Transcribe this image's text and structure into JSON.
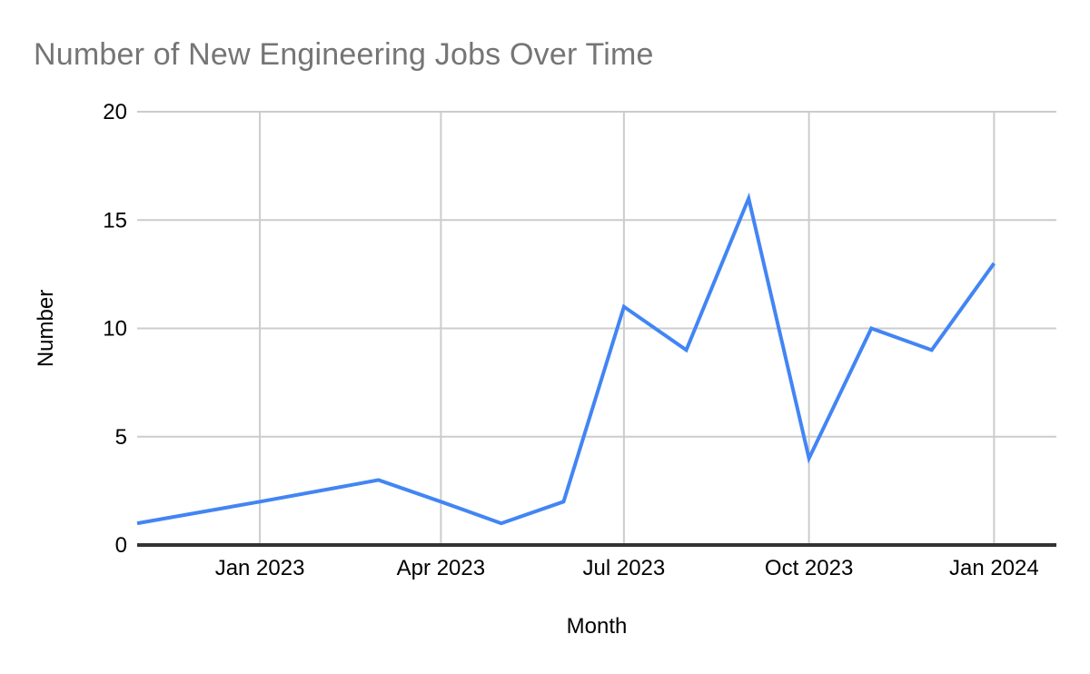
{
  "page": {
    "title": "Number of New Engineering Jobs Over Time"
  },
  "colors": {
    "series_line": "#4285f4",
    "gridline": "#cccccc",
    "baseline": "#333333",
    "title_text": "#757575",
    "axis_label_text": "#000000",
    "background": "#ffffff"
  },
  "chart_data": {
    "type": "line",
    "title": "Number of New Engineering Jobs Over Time",
    "xlabel": "Month",
    "ylabel": "Number",
    "ylim": [
      0,
      20
    ],
    "y_ticks": [
      0,
      5,
      10,
      15,
      20
    ],
    "grid": true,
    "legend": "none",
    "x_axis": {
      "start_month": "Nov 2022",
      "end_month": "Feb 2024",
      "total_days": 457
    },
    "x_gridlines": [
      {
        "label": "Jan 2023",
        "day": 61
      },
      {
        "label": "Apr 2023",
        "day": 151
      },
      {
        "label": "Jul 2023",
        "day": 242
      },
      {
        "label": "Oct 2023",
        "day": 334
      },
      {
        "label": "Jan 2024",
        "day": 426
      }
    ],
    "series": [
      {
        "name": "Number",
        "points": [
          {
            "month": "Nov 2022",
            "day": 0,
            "value": 1
          },
          {
            "month": "Jan 2023",
            "day": 61,
            "value": 2
          },
          {
            "month": "Mar 2023",
            "day": 120,
            "value": 3
          },
          {
            "month": "Apr 2023",
            "day": 151,
            "value": 2
          },
          {
            "month": "May 2023",
            "day": 181,
            "value": 1
          },
          {
            "month": "Jun 2023",
            "day": 212,
            "value": 2
          },
          {
            "month": "Jul 2023",
            "day": 242,
            "value": 11
          },
          {
            "month": "Aug 2023",
            "day": 273,
            "value": 9
          },
          {
            "month": "Sep 2023",
            "day": 304,
            "value": 16
          },
          {
            "month": "Oct 2023",
            "day": 334,
            "value": 4
          },
          {
            "month": "Nov 2023",
            "day": 365,
            "value": 10
          },
          {
            "month": "Dec 2023",
            "day": 395,
            "value": 9
          },
          {
            "month": "Jan 2024",
            "day": 426,
            "value": 13
          }
        ]
      }
    ]
  }
}
